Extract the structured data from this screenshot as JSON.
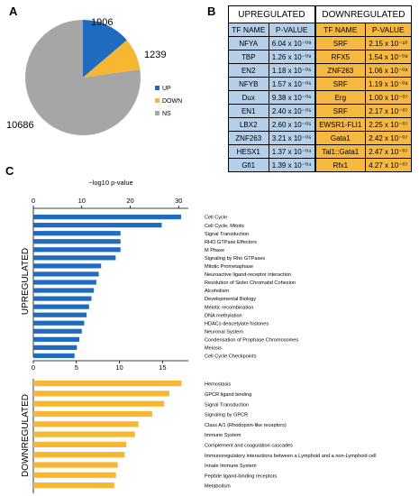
{
  "panels": {
    "a": "A",
    "b": "B",
    "c": "C"
  },
  "pie": {
    "type": "pie",
    "slices": [
      {
        "label": "UP",
        "value": 1906,
        "color": "#1f6bbf"
      },
      {
        "label": "DOWN",
        "value": 1239,
        "color": "#f7b733"
      },
      {
        "label": "NS",
        "value": 10686,
        "color": "#a6a6a6"
      }
    ]
  },
  "table": {
    "up_title": "UPREGULATED",
    "down_title": "DOWNREGULATED",
    "col_tf": "TF NAME",
    "col_p": "P-VALUE",
    "up_rows": [
      {
        "name": "NFYA",
        "p": "6.04 x 10⁻⁰⁹"
      },
      {
        "name": "TBP",
        "p": "1.26 x 10⁻⁰⁹"
      },
      {
        "name": "EN2",
        "p": "1.18 x 10⁻⁰⁶"
      },
      {
        "name": "NFYB",
        "p": "1.57 x 10⁻⁰⁶"
      },
      {
        "name": "Dux",
        "p": "9.38 x 10⁻⁰⁶"
      },
      {
        "name": "EN1",
        "p": "2.40 x 10⁻⁰⁵"
      },
      {
        "name": "LBX2",
        "p": "2.60 x 10⁻⁰⁵"
      },
      {
        "name": "ZNF263",
        "p": "3.21 x 10⁻⁰⁵"
      },
      {
        "name": "HESX1",
        "p": "1.37 x 10⁻⁰⁴"
      },
      {
        "name": "Gfi1",
        "p": "1.39 x 10⁻⁰⁴"
      }
    ],
    "down_rows": [
      {
        "name": "SRF",
        "p": "2.15 x 10⁻¹⁰"
      },
      {
        "name": "RFX5",
        "p": "1.54 x 10⁻⁰⁸"
      },
      {
        "name": "ZNF263",
        "p": "1.06 x 10⁻⁰⁸"
      },
      {
        "name": "SRF",
        "p": "1.19 x 10⁻⁰⁸"
      },
      {
        "name": "Erg",
        "p": "1.00 x 10⁻⁰⁷"
      },
      {
        "name": "SRF",
        "p": "2.17 x 10⁻⁰⁷"
      },
      {
        "name": "EWSR1-FLI1",
        "p": "2.25 x 10⁻⁰⁷"
      },
      {
        "name": "Gata1",
        "p": "2.42 x 10⁻⁰⁷"
      },
      {
        "name": "Tal1::Gata1",
        "p": "2.47 x 10⁻⁰⁷"
      },
      {
        "name": "Rfx1",
        "p": "4.27 x 10⁻⁰⁷"
      }
    ]
  },
  "chart_data": [
    {
      "type": "bar",
      "orientation": "horizontal",
      "xlabel": "−log10 p-value",
      "xlim": [
        0,
        32
      ],
      "xticks": [
        "0",
        "10",
        "20",
        "30"
      ],
      "group_label": "UPREGULATED",
      "color": "#1f6bbf",
      "categories": [
        "Cell Cycle",
        "Cell Cycle, Mitotic",
        "Signal Transduction",
        "RHO GTPase Effectors",
        "M Phase",
        "Signaling by Rho GTPases",
        "Mitotic Prometaphase",
        "Neuroactive ligand-receptor interaction",
        "Resolution of Sister Chromatid Cohesion",
        "Alcoholism",
        "Developmental Biology",
        "Meiotic recombination",
        "DNA methylation",
        "HDACs deacetylate histones",
        "Neuronal System",
        "Condensation of Prophase Chromosomes",
        "Meiosis",
        "Cell Cycle Checkpoints"
      ],
      "values": [
        30.5,
        26.5,
        18.0,
        18.0,
        18.0,
        17.0,
        14.0,
        13.5,
        13.0,
        12.5,
        12.0,
        11.5,
        11.0,
        10.5,
        10.0,
        9.5,
        9.0,
        8.5
      ]
    },
    {
      "type": "bar",
      "orientation": "horizontal",
      "xlim": [
        0,
        18
      ],
      "xticks": [
        "0",
        "5",
        "10",
        "15"
      ],
      "group_label": "DOWNREGULATED",
      "color": "#f7b733",
      "categories": [
        "Hemostasis",
        "GPCR ligand binding",
        "Signal Transduction",
        "Signaling by GPCR",
        "Class A/1 (Rhodopsin-like receptors)",
        "Immune System",
        "Complement and coagulation cascades",
        "Immunoregulatory interactions between a Lymphoid and a non-Lymphoid cell",
        "Innate Immune System",
        "Peptide ligand-binding receptors",
        "Metabolism"
      ],
      "values": [
        17.2,
        15.8,
        15.2,
        13.8,
        12.2,
        11.8,
        10.8,
        10.6,
        9.8,
        9.6,
        9.4
      ]
    }
  ]
}
